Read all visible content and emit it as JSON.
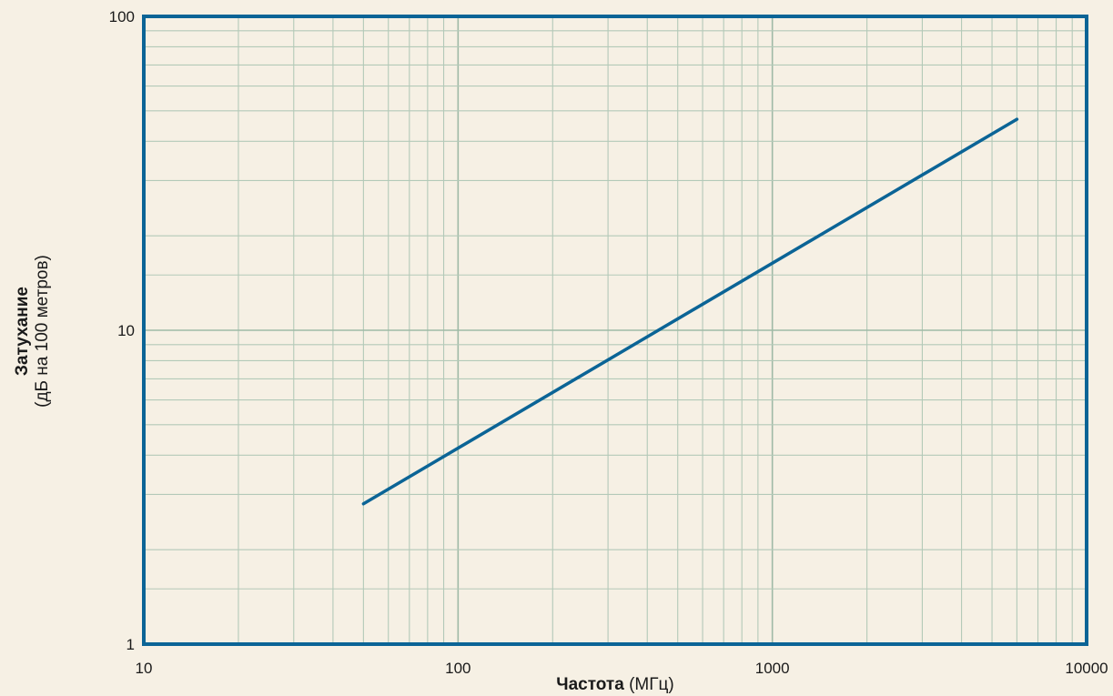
{
  "chart_data": {
    "type": "line",
    "xscale": "log",
    "yscale": "log",
    "xlim": [
      10,
      10000
    ],
    "ylim": [
      1,
      100
    ],
    "grid": true,
    "xlabel": {
      "bold": "Частота",
      "normal": " (МГц)"
    },
    "ylabel": {
      "bold": "Затухание",
      "normal": "(дБ на 100 метров)"
    },
    "x_ticks": [
      {
        "value": 10,
        "label": "10"
      },
      {
        "value": 100,
        "label": "100"
      },
      {
        "value": 1000,
        "label": "1000"
      },
      {
        "value": 10000,
        "label": "10000"
      }
    ],
    "y_ticks": [
      {
        "value": 1,
        "label": "1"
      },
      {
        "value": 10,
        "label": "10"
      },
      {
        "value": 100,
        "label": "100"
      }
    ],
    "series": [
      {
        "color": "#0b6496",
        "points": [
          {
            "x": 50,
            "y": 2.8
          },
          {
            "x": 6000,
            "y": 47
          }
        ]
      }
    ],
    "colors": {
      "background": "#f6f0e4",
      "frame": "#0b6496",
      "grid": "#b3c9b8",
      "grid_major": "#9fbaa6"
    }
  }
}
